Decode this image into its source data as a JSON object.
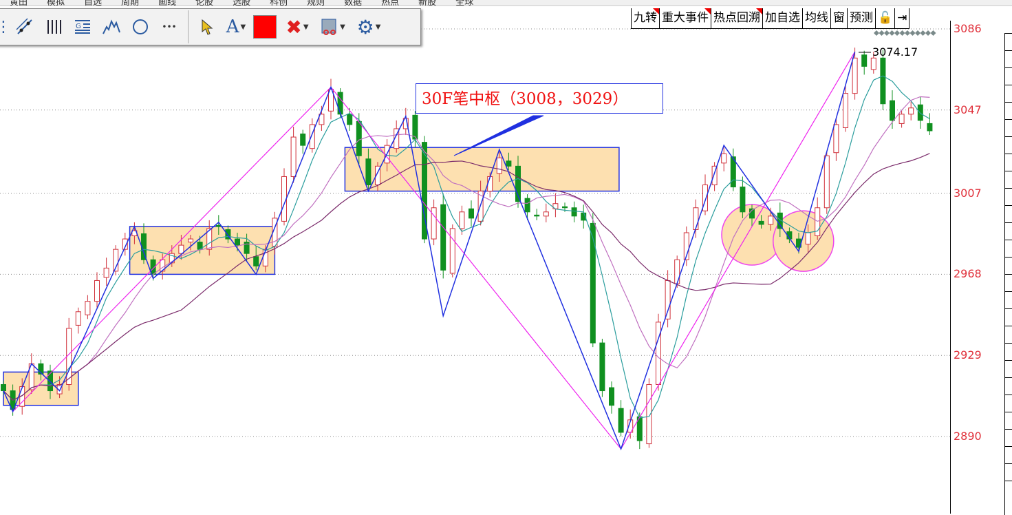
{
  "menu": [
    "黄田",
    "模拟",
    "自选",
    "周期",
    "画线",
    "论股",
    "选股",
    "科创",
    "规则",
    "数据",
    "热点",
    "新股",
    "全球"
  ],
  "toolbar": {
    "tools": [
      "dots-icon",
      "parallel-line-icon",
      "vertical-lines-icon",
      "gann-icon",
      "wave-icon",
      "circle-icon",
      "more-icon"
    ],
    "right_tools": [
      "pointer-icon",
      "text-icon",
      "color-swatch",
      "delete-icon",
      "save-icon",
      "settings-icon"
    ],
    "text_label": "A",
    "more_label": "•••",
    "color": "#ff0000"
  },
  "top_tabs": [
    {
      "label": "九转",
      "flag": true
    },
    {
      "label": "重大事件",
      "flag": true
    },
    {
      "label": "热点回溯",
      "flag": true
    },
    {
      "label": "加自选",
      "flag": false
    },
    {
      "label": "均线",
      "flag": false
    },
    {
      "label": "窗",
      "flag": false
    },
    {
      "label": "预测",
      "flag": false
    },
    {
      "label": "🔓",
      "flag": false
    },
    {
      "label": "⇥",
      "flag": false
    }
  ],
  "annotation": "30F笔中枢（3008，3029）",
  "chart_data": {
    "type": "candlestick",
    "y_ticks": [
      "3086",
      "3047",
      "3007",
      "2968",
      "2929",
      "2890"
    ],
    "ylim": [
      2870,
      3090
    ],
    "grid": true,
    "last_high_label": "3074.17",
    "closes": [
      2912,
      2903,
      2914,
      2925,
      2920,
      2912,
      2915,
      2942,
      2950,
      2955,
      2965,
      2971,
      2980,
      2985,
      2989,
      2975,
      2968,
      2975,
      2978,
      2982,
      2985,
      2980,
      2990,
      2991,
      2985,
      2982,
      2978,
      2972,
      2980,
      2995,
      3015,
      3034,
      3030,
      3040,
      3045,
      3057,
      3045,
      3040,
      3025,
      3011,
      3020,
      3030,
      3038,
      3043,
      3033,
      2985,
      3000,
      2970,
      2990,
      2998,
      2995,
      3008,
      3015,
      3024,
      3020,
      3003,
      2998,
      2996,
      2998,
      3002,
      3000,
      2996,
      2994,
      2935,
      2912,
      2905,
      2892,
      2898,
      2888,
      2915,
      2945,
      2965,
      2975,
      2988,
      3000,
      3011,
      3020,
      3026,
      3010,
      2998,
      2995,
      2992,
      2996,
      2990,
      2985,
      2981,
      2988,
      3000,
      3025,
      3040,
      3055,
      3072,
      3068,
      3072,
      3050,
      3042,
      3045,
      3048,
      3042,
      3037
    ],
    "bi_line": [
      [
        0,
        2912
      ],
      [
        1,
        2902
      ],
      [
        3,
        2925
      ],
      [
        6,
        2912
      ],
      [
        14,
        2991
      ],
      [
        16,
        2966
      ],
      [
        23,
        2993
      ],
      [
        27,
        2968
      ],
      [
        35,
        3058
      ],
      [
        39,
        3008
      ],
      [
        43,
        3044
      ],
      [
        47,
        2948
      ],
      [
        53,
        3028
      ],
      [
        66,
        2884
      ],
      [
        77,
        3030
      ],
      [
        85,
        2979
      ],
      [
        91,
        3075
      ]
    ],
    "duan_line": [
      [
        1,
        2902
      ],
      [
        35,
        3058
      ],
      [
        66,
        2884
      ],
      [
        91,
        3075
      ]
    ],
    "zones": [
      {
        "from": 0,
        "to": 8,
        "low": 2905,
        "high": 2921
      },
      {
        "from": 13.5,
        "to": 29,
        "low": 2968,
        "high": 2991
      },
      {
        "from": 36.5,
        "to": 65.8,
        "low": 3008,
        "high": 3029
      }
    ],
    "circles": [
      [
        80,
        2987
      ],
      [
        85.5,
        2984
      ]
    ],
    "ma_colors": [
      "#2a9d9d",
      "#c070c0",
      "#7a2a6a"
    ],
    "up_color": "#d0303a",
    "down_color": "#109020"
  }
}
